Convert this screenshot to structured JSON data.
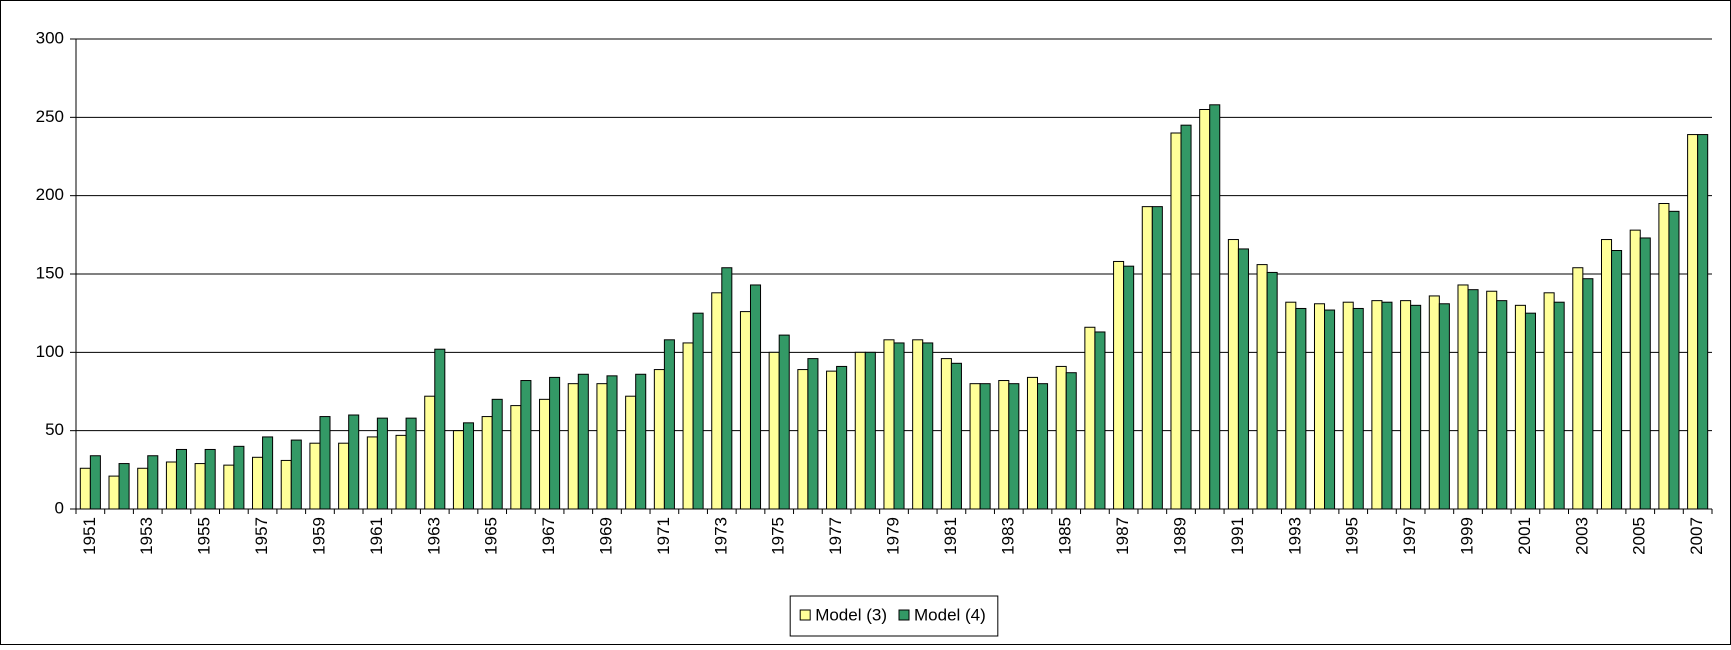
{
  "chart_data": {
    "type": "bar",
    "categories": [
      "1951",
      null,
      "1953",
      null,
      "1955",
      null,
      "1957",
      null,
      "1959",
      null,
      "1961",
      null,
      "1963",
      null,
      "1965",
      null,
      "1967",
      null,
      "1969",
      null,
      "1971",
      null,
      "1973",
      null,
      "1975",
      null,
      "1977",
      null,
      "1979",
      null,
      "1981",
      null,
      "1983",
      null,
      "1985",
      null,
      "1987",
      null,
      "1989",
      null,
      "1991",
      null,
      "1993",
      null,
      "1995",
      null,
      "1997",
      null,
      "1999",
      null,
      "2001",
      null,
      "2003",
      null,
      "2005",
      null,
      "2007"
    ],
    "series": [
      {
        "name": "Model (3)",
        "color": "#ffff99",
        "values": [
          26,
          21,
          26,
          30,
          29,
          28,
          33,
          31,
          42,
          42,
          46,
          47,
          72,
          50,
          59,
          66,
          70,
          80,
          80,
          72,
          89,
          106,
          138,
          126,
          100,
          89,
          88,
          100,
          108,
          108,
          96,
          80,
          82,
          84,
          91,
          116,
          158,
          193,
          240,
          255,
          172,
          156,
          132,
          131,
          132,
          133,
          133,
          136,
          143,
          139,
          130,
          138,
          154,
          172,
          178,
          195,
          239
        ]
      },
      {
        "name": "Model (4)",
        "color": "#339966",
        "values": [
          34,
          29,
          34,
          38,
          38,
          40,
          46,
          44,
          59,
          60,
          58,
          58,
          102,
          55,
          70,
          82,
          84,
          86,
          85,
          86,
          108,
          125,
          154,
          143,
          111,
          96,
          91,
          100,
          106,
          106,
          93,
          80,
          80,
          80,
          87,
          113,
          155,
          193,
          245,
          258,
          166,
          151,
          128,
          127,
          128,
          132,
          130,
          131,
          140,
          133,
          125,
          132,
          147,
          165,
          173,
          190,
          239
        ]
      }
    ],
    "ylim": [
      0,
      300
    ],
    "yticks": [
      0,
      50,
      100,
      150,
      200,
      250,
      300
    ],
    "grid": true,
    "legend": "bottom"
  }
}
